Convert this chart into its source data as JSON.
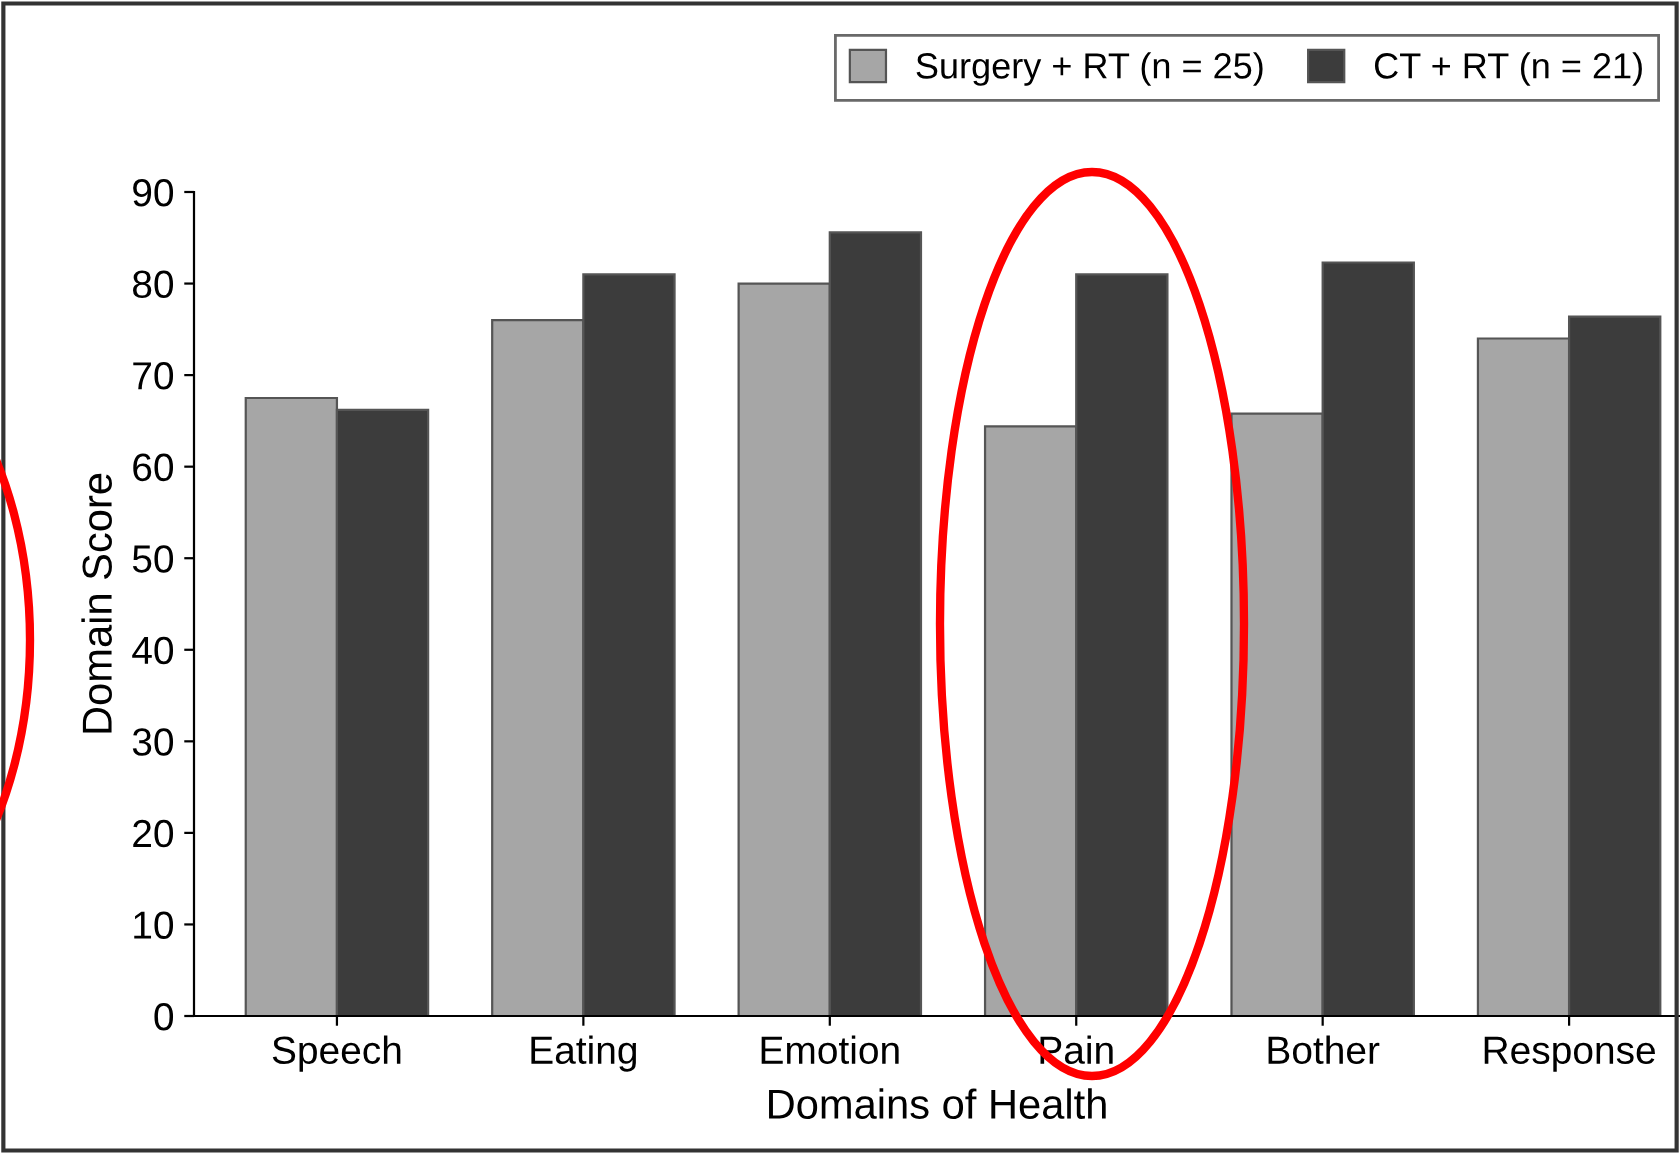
{
  "chart_data": {
    "type": "bar",
    "xlabel": "Domains of Health",
    "ylabel": "Domain Score",
    "categories": [
      "Speech",
      "Eating",
      "Emotion",
      "Pain",
      "Bother",
      "Response"
    ],
    "series": [
      {
        "name": "Surgery + RT (n = 25)",
        "color": "#a6a6a6",
        "values": [
          67.5,
          76,
          80,
          64.4,
          65.8,
          74
        ]
      },
      {
        "name": "CT + RT (n = 21)",
        "color": "#3c3c3c",
        "values": [
          66.2,
          81,
          85.6,
          81,
          82.3,
          76.4
        ]
      }
    ],
    "ylim": [
      0,
      90
    ],
    "yticks": [
      0,
      10,
      20,
      30,
      40,
      50,
      60,
      70,
      80,
      90
    ],
    "grid": false,
    "legend": "top right"
  }
}
